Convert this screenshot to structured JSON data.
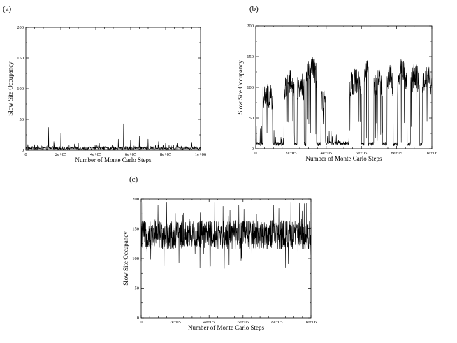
{
  "chart_data": [
    {
      "panel": "(a)",
      "type": "line",
      "xlabel": "Number of Monte Carlo Steps",
      "ylabel": "Slow Site Occupancy",
      "xlim": [
        0,
        1000000
      ],
      "ylim": [
        0,
        200
      ],
      "x_ticks": [
        "0",
        "2e+05",
        "4e+05",
        "6e+05",
        "8e+05",
        "1e+06"
      ],
      "y_ticks": [
        "0",
        "50",
        "100",
        "150",
        "200"
      ],
      "grid": false,
      "series": [
        {
          "regime": "low",
          "baseline": 3,
          "noise": 3,
          "spikes": [
            [
              50000,
              9
            ],
            [
              130000,
              37
            ],
            [
              160000,
              14
            ],
            [
              200000,
              28
            ],
            [
              300000,
              12
            ],
            [
              420000,
              11
            ],
            [
              530000,
              18
            ],
            [
              560000,
              43
            ],
            [
              600000,
              16
            ],
            [
              650000,
              23
            ],
            [
              700000,
              18
            ],
            [
              760000,
              14
            ],
            [
              800000,
              11
            ],
            [
              870000,
              12
            ],
            [
              950000,
              13
            ]
          ]
        }
      ]
    },
    {
      "panel": "(b)",
      "type": "line",
      "xlabel": "Number of Monte Carlo Steps",
      "ylabel": "Slow Site Occupancy",
      "xlim": [
        0,
        1000000
      ],
      "ylim": [
        0,
        200
      ],
      "x_ticks": [
        "0",
        "2e+05",
        "4e+05",
        "6e+05",
        "8e+05",
        "1e+06"
      ],
      "y_ticks": [
        "0",
        "50",
        "100",
        "150",
        "200"
      ],
      "grid": false,
      "series": [
        {
          "regime": "switching",
          "segments": [
            [
              0,
              40000,
              5,
              40
            ],
            [
              40000,
              95000,
              80,
              85
            ],
            [
              95000,
              160000,
              5,
              25
            ],
            [
              160000,
              220000,
              70,
              110
            ],
            [
              220000,
              235000,
              5,
              0
            ],
            [
              235000,
              275000,
              85,
              105
            ],
            [
              275000,
              285000,
              5,
              0
            ],
            [
              285000,
              345000,
              100,
              135
            ],
            [
              345000,
              370000,
              5,
              0
            ],
            [
              370000,
              395000,
              75,
              80
            ],
            [
              395000,
              530000,
              6,
              20
            ],
            [
              530000,
              600000,
              85,
              110
            ],
            [
              600000,
              615000,
              5,
              0
            ],
            [
              615000,
              640000,
              90,
              133
            ],
            [
              640000,
              670000,
              5,
              0
            ],
            [
              670000,
              720000,
              80,
              110
            ],
            [
              720000,
              745000,
              5,
              0
            ],
            [
              745000,
              780000,
              80,
              120
            ],
            [
              780000,
              805000,
              5,
              0
            ],
            [
              805000,
              860000,
              80,
              130
            ],
            [
              860000,
              880000,
              5,
              0
            ],
            [
              880000,
              930000,
              80,
              120
            ],
            [
              930000,
              945000,
              5,
              0
            ],
            [
              945000,
              1000000,
              75,
              120
            ]
          ]
        }
      ]
    },
    {
      "panel": "(c)",
      "type": "line",
      "xlabel": "Number of Monte Carlo Steps",
      "ylabel": "Slow Site Occupancy",
      "xlim": [
        0,
        1000000
      ],
      "ylim": [
        0,
        200
      ],
      "x_ticks": [
        "0",
        "2e+05",
        "4e+05",
        "6e+05",
        "8e+05",
        "1e+06"
      ],
      "y_ticks": [
        "0",
        "50",
        "100",
        "150",
        "200"
      ],
      "grid": false,
      "series": [
        {
          "regime": "high",
          "baseline": 140,
          "noise": 22,
          "max": 195,
          "min": 78
        }
      ]
    }
  ]
}
